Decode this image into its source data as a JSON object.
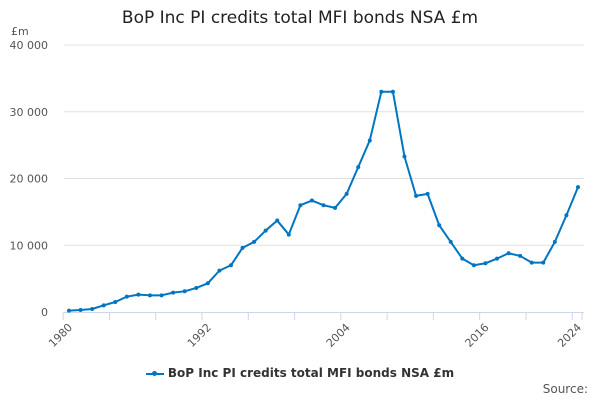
{
  "chart_data": {
    "type": "line",
    "title": "BoP Inc PI credits total MFI bonds NSA £m",
    "ylabel": "£m",
    "xlabel": "",
    "ylim": [
      0,
      40000
    ],
    "yticks": [
      0,
      10000,
      20000,
      30000,
      40000
    ],
    "ytick_labels": [
      "0",
      "10 000",
      "20 000",
      "30 000",
      "40 000"
    ],
    "xticks": [
      1980,
      1992,
      2004,
      2016,
      2024
    ],
    "grid": true,
    "legend": "bottom",
    "color": "#0075c2",
    "source": "Source:",
    "series": [
      {
        "name": "BoP Inc PI credits total MFI bonds NSA £m",
        "x": [
          1980,
          1981,
          1982,
          1983,
          1984,
          1985,
          1986,
          1987,
          1988,
          1989,
          1990,
          1991,
          1992,
          1993,
          1994,
          1995,
          1996,
          1997,
          1998,
          1999,
          2000,
          2001,
          2002,
          2003,
          2004,
          2005,
          2006,
          2007,
          2008,
          2009,
          2010,
          2011,
          2012,
          2013,
          2014,
          2015,
          2016,
          2017,
          2018,
          2019,
          2020,
          2021,
          2022,
          2023,
          2024
        ],
        "values": [
          200,
          300,
          450,
          1000,
          1500,
          2300,
          2600,
          2500,
          2500,
          2900,
          3100,
          3600,
          4300,
          6200,
          7000,
          9600,
          10500,
          12200,
          13700,
          11600,
          16000,
          16700,
          16000,
          15600,
          17700,
          21700,
          25700,
          33000,
          33000,
          23300,
          17400,
          17700,
          13000,
          10500,
          8000,
          7000,
          7300,
          8000,
          8800,
          8400,
          7400,
          7400,
          10500,
          14500,
          18700
        ]
      }
    ]
  }
}
